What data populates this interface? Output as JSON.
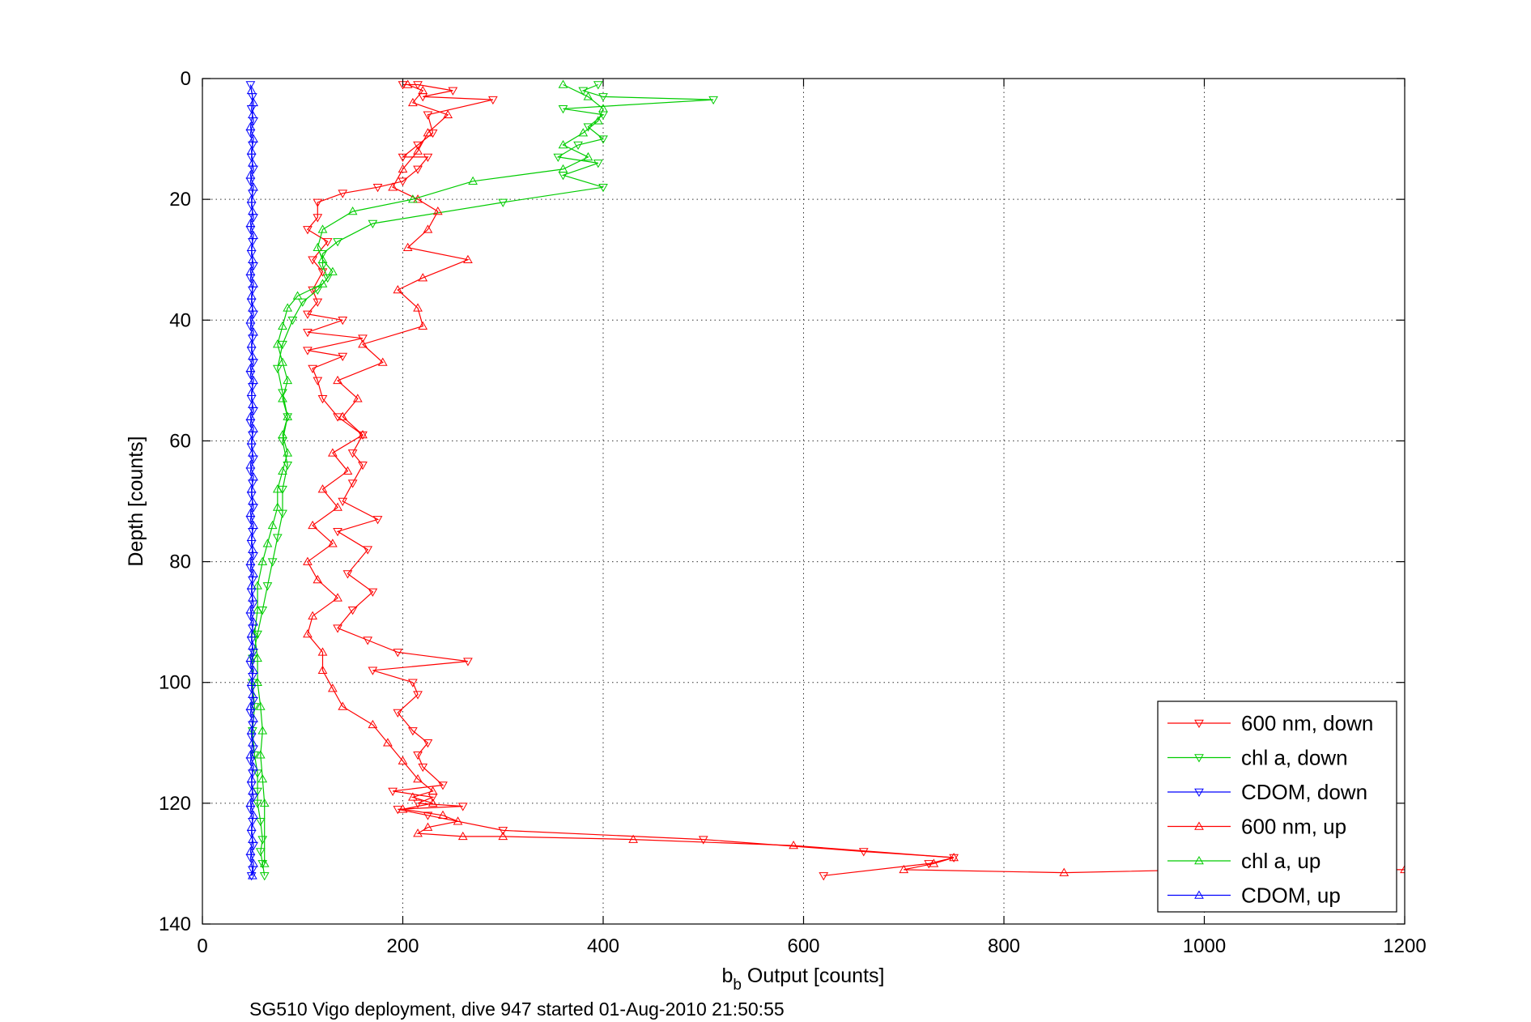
{
  "chart_data": {
    "type": "line",
    "xlabel_main": "b",
    "xlabel_sub": "b",
    "xlabel_rest": " Output [counts]",
    "ylabel": "Depth [counts]",
    "caption": "SG510 Vigo deployment, dive 947 started 01-Aug-2010 21:50:55",
    "xlim": [
      0,
      1200
    ],
    "ylim": [
      0,
      140
    ],
    "y_reversed": true,
    "grid": true,
    "legend_position": "bottom-right",
    "x_ticks": [
      0,
      200,
      400,
      600,
      800,
      1000,
      1200
    ],
    "x_tick_labels": [
      "0",
      "200",
      "400",
      "600",
      "800",
      "1000",
      "1200"
    ],
    "y_ticks": [
      0,
      20,
      40,
      60,
      80,
      100,
      120,
      140
    ],
    "y_tick_labels": [
      "0",
      "20",
      "40",
      "60",
      "80",
      "100",
      "120",
      "140"
    ],
    "series": [
      {
        "name": "600 nm, down",
        "color": "#ff0000",
        "marker": "triangle-down",
        "x": [
          200,
          215,
          250,
          220,
          290,
          225,
          230,
          215,
          200,
          225,
          215,
          200,
          175,
          140,
          115,
          115,
          105,
          125,
          110,
          120,
          110,
          115,
          105,
          140,
          105,
          160,
          105,
          140,
          110,
          115,
          120,
          135,
          160,
          150,
          160,
          150,
          140,
          175,
          135,
          165,
          145,
          170,
          150,
          135,
          165,
          195,
          265,
          170,
          210,
          215,
          195,
          210,
          225,
          215,
          220,
          240,
          190,
          230,
          215,
          260,
          195,
          225,
          300,
          500,
          660,
          750,
          725,
          620
        ],
        "y": [
          1,
          1,
          2,
          3,
          3.5,
          6,
          9,
          11,
          13,
          13,
          15,
          17,
          18,
          19,
          20.5,
          23,
          25,
          27,
          30,
          32,
          35,
          37,
          39,
          40,
          42,
          43,
          45,
          46,
          48,
          50,
          53,
          56,
          59,
          62,
          64,
          67,
          70,
          73,
          75,
          78,
          82,
          85,
          88,
          91,
          93,
          95,
          96.5,
          98,
          100,
          102,
          105,
          108,
          110,
          112,
          114,
          117,
          118,
          119,
          120,
          120.5,
          121,
          122,
          124.5,
          126,
          128,
          129,
          130,
          132
        ]
      },
      {
        "name": "chl a, down",
        "color": "#00cc00",
        "marker": "triangle-down",
        "x": [
          395,
          380,
          400,
          510,
          360,
          400,
          385,
          400,
          375,
          355,
          395,
          360,
          400,
          300,
          170,
          135,
          120,
          120,
          125,
          115,
          100,
          90,
          80,
          75,
          80,
          85,
          80,
          85,
          80,
          80,
          75,
          70,
          65,
          60,
          55,
          50,
          50,
          52,
          50,
          52,
          55,
          55,
          55,
          58,
          60,
          58,
          60,
          62
        ],
        "y": [
          1,
          2,
          3,
          3.5,
          5,
          6,
          8,
          10,
          11,
          13,
          14,
          16,
          18,
          20.5,
          24,
          27,
          29,
          31,
          33,
          35,
          37,
          40,
          44,
          48,
          52,
          56,
          60,
          64,
          68,
          72,
          76,
          80,
          84,
          88,
          92,
          96,
          100,
          104,
          108,
          112,
          115,
          118,
          120,
          123,
          126,
          128,
          130,
          132
        ]
      },
      {
        "name": "CDOM, down",
        "color": "#0000ff",
        "marker": "triangle-down",
        "x": [
          48,
          50,
          49,
          51,
          48,
          50,
          49,
          51,
          48,
          50,
          49,
          51,
          48,
          50,
          49,
          51,
          48,
          50,
          49,
          51,
          48,
          50,
          49,
          51,
          48,
          50,
          49,
          51,
          48,
          50,
          49,
          51,
          48,
          50,
          49,
          51,
          48,
          50,
          49,
          51,
          48,
          50,
          49,
          51,
          48,
          50,
          49,
          51,
          48,
          50,
          49,
          51,
          48,
          50,
          49,
          51,
          48,
          50,
          49,
          51,
          48,
          50,
          49,
          51,
          48,
          50,
          49
        ],
        "y": [
          1,
          3,
          5,
          7,
          9,
          11,
          13,
          15,
          17,
          19,
          21,
          23,
          25,
          27,
          29,
          31,
          33,
          35,
          37,
          39,
          41,
          43,
          45,
          47,
          49,
          51,
          53,
          55,
          57,
          59,
          61,
          63,
          65,
          67,
          69,
          71,
          73,
          75,
          77,
          79,
          81,
          83,
          85,
          87,
          89,
          91,
          93,
          95,
          97,
          99,
          101,
          103,
          105,
          107,
          109,
          111,
          113,
          115,
          117,
          119,
          121,
          123,
          125,
          127,
          129,
          131,
          132
        ]
      },
      {
        "name": "600 nm, up",
        "color": "#ff0000",
        "marker": "triangle-up",
        "x": [
          205,
          220,
          210,
          245,
          225,
          215,
          200,
          190,
          215,
          235,
          225,
          205,
          265,
          220,
          195,
          215,
          220,
          160,
          180,
          135,
          155,
          140,
          160,
          130,
          145,
          120,
          135,
          110,
          130,
          105,
          115,
          135,
          110,
          105,
          120,
          120,
          130,
          140,
          170,
          185,
          200,
          215,
          230,
          210,
          230,
          200,
          240,
          255,
          225,
          215,
          260,
          300,
          430,
          590,
          750,
          730,
          700,
          860,
          1000,
          1200
        ],
        "y": [
          1,
          2,
          4,
          6,
          9,
          12,
          15,
          18,
          20,
          22,
          25,
          28,
          30,
          33,
          35,
          38,
          41,
          44,
          47,
          50,
          53,
          56,
          59,
          62,
          65,
          68,
          71,
          74,
          77,
          80,
          83,
          86,
          89,
          92,
          95,
          98,
          101,
          104,
          107,
          110,
          113,
          116,
          118,
          119,
          120,
          121,
          122,
          123,
          124,
          125,
          125.5,
          125.5,
          126,
          127,
          129,
          130,
          131,
          131.5,
          131,
          131
        ]
      },
      {
        "name": "chl a, up",
        "color": "#00cc00",
        "marker": "triangle-up",
        "x": [
          360,
          385,
          400,
          395,
          380,
          360,
          385,
          360,
          270,
          210,
          150,
          120,
          115,
          120,
          130,
          120,
          95,
          85,
          80,
          75,
          80,
          85,
          80,
          85,
          80,
          85,
          80,
          75,
          75,
          70,
          65,
          60,
          55,
          55,
          52,
          55,
          55,
          58,
          60,
          58,
          60,
          62,
          62
        ],
        "y": [
          1,
          3,
          5,
          7,
          9,
          11,
          13,
          15,
          17,
          20,
          22,
          25,
          28,
          30,
          32,
          34,
          36,
          38,
          41,
          44,
          47,
          50,
          53,
          56,
          59,
          62,
          65,
          68,
          71,
          74,
          77,
          80,
          84,
          88,
          92,
          96,
          100,
          104,
          108,
          112,
          116,
          120,
          130
        ]
      },
      {
        "name": "CDOM, up",
        "color": "#0000ff",
        "marker": "triangle-up",
        "x": [
          49,
          51,
          50,
          48,
          51,
          49,
          50,
          48,
          51,
          49,
          50,
          48,
          51,
          49,
          50,
          48,
          51,
          49,
          50,
          48,
          51,
          49,
          50,
          48,
          51,
          49,
          50,
          48,
          51,
          49,
          50,
          48,
          51,
          49,
          50,
          48,
          51,
          49,
          50,
          48,
          51,
          49,
          50,
          48,
          51,
          49,
          50,
          48,
          51,
          49,
          50,
          48,
          51,
          49,
          50,
          48,
          51,
          49,
          50,
          48,
          51,
          49,
          50,
          48,
          51,
          50
        ],
        "y": [
          2,
          4,
          6,
          8,
          10,
          12,
          14,
          16,
          18,
          20,
          22,
          24,
          26,
          28,
          30,
          32,
          34,
          36,
          38,
          40,
          42,
          44,
          46,
          48,
          50,
          52,
          54,
          56,
          58,
          60,
          62,
          64,
          66,
          68,
          70,
          72,
          74,
          76,
          78,
          80,
          82,
          84,
          86,
          88,
          90,
          92,
          94,
          96,
          98,
          100,
          102,
          104,
          106,
          108,
          110,
          112,
          114,
          116,
          118,
          120,
          122,
          124,
          126,
          128,
          130,
          132
        ]
      }
    ]
  }
}
